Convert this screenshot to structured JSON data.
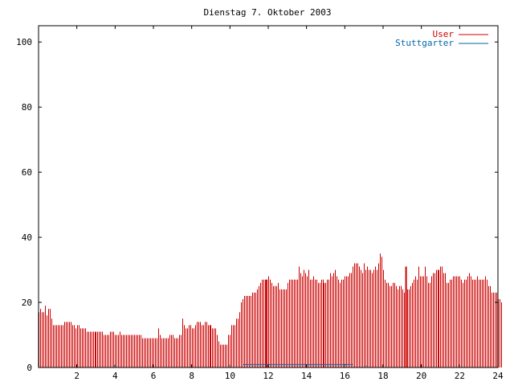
{
  "chart_data": {
    "type": "bar",
    "title": "Dienstag 7. Oktober 2003",
    "xlabel": "",
    "ylabel": "",
    "xlim": [
      0,
      24
    ],
    "ylim": [
      0,
      105
    ],
    "xticks": [
      "2",
      "4",
      "6",
      "8",
      "10",
      "12",
      "14",
      "16",
      "18",
      "20",
      "22",
      "24"
    ],
    "yticks": [
      "0",
      "20",
      "40",
      "60",
      "80",
      "100"
    ],
    "grid": false,
    "legend_position": "top-right",
    "series": [
      {
        "name": "User",
        "color": "#cc0000",
        "x_start": 0,
        "x_step": 0.08333,
        "values": [
          17,
          18,
          17,
          17,
          19,
          16,
          18,
          18,
          15,
          13,
          13,
          13,
          13,
          13,
          13,
          13,
          14,
          14,
          14,
          14,
          14,
          13,
          13,
          12,
          13,
          13,
          12,
          12,
          12,
          12,
          11,
          11,
          11,
          11,
          11,
          11,
          11,
          11,
          11,
          11,
          11,
          10,
          10,
          10,
          10,
          11,
          11,
          11,
          10,
          10,
          10,
          11,
          10,
          10,
          10,
          10,
          10,
          10,
          10,
          10,
          10,
          10,
          10,
          10,
          10,
          9,
          9,
          9,
          9,
          9,
          9,
          9,
          9,
          9,
          9,
          12,
          10,
          9,
          9,
          9,
          9,
          9,
          10,
          10,
          10,
          9,
          9,
          9,
          10,
          10,
          15,
          13,
          12,
          12,
          13,
          13,
          12,
          12,
          13,
          14,
          14,
          14,
          13,
          13,
          14,
          14,
          13,
          13,
          13,
          12,
          12,
          12,
          10,
          8,
          7,
          7,
          7,
          7,
          7,
          10,
          10,
          13,
          13,
          13,
          15,
          15,
          17,
          20,
          21,
          22,
          22,
          22,
          22,
          22,
          23,
          23,
          23,
          24,
          25,
          26,
          27,
          27,
          27,
          27,
          28,
          27,
          26,
          25,
          25,
          25,
          26,
          24,
          24,
          24,
          24,
          24,
          26,
          27,
          27,
          27,
          27,
          27,
          27,
          31,
          29,
          28,
          30,
          29,
          28,
          30,
          27,
          27,
          28,
          27,
          27,
          26,
          26,
          27,
          27,
          26,
          26,
          27,
          27,
          29,
          28,
          29,
          30,
          28,
          27,
          26,
          27,
          27,
          28,
          28,
          28,
          29,
          29,
          31,
          32,
          32,
          32,
          31,
          30,
          29,
          32,
          30,
          31,
          30,
          30,
          29,
          30,
          31,
          30,
          32,
          35,
          34,
          30,
          27,
          26,
          26,
          25,
          25,
          26,
          26,
          25,
          24,
          25,
          25,
          24,
          23,
          23,
          24,
          24,
          25,
          26,
          27,
          28,
          27,
          31,
          28,
          28,
          28,
          31,
          28,
          26,
          26,
          28,
          29,
          29,
          30,
          30,
          30,
          31,
          31,
          29,
          29,
          26,
          26,
          27,
          27,
          28,
          28,
          28,
          28,
          28,
          27,
          26,
          27,
          27,
          28,
          29,
          28,
          27,
          27,
          27,
          28,
          27,
          27,
          27,
          27,
          28,
          27,
          25,
          25,
          23,
          23,
          23,
          23,
          21,
          21,
          20
        ],
        "spikes": [
          {
            "x": 11.92,
            "value": 27
          },
          {
            "x": 19.2,
            "value": 31
          }
        ]
      },
      {
        "name": "Stuttgarter",
        "color": "#0066aa",
        "segments": [
          {
            "x_start": 10.7,
            "x_end": 16.4,
            "value": 0.9
          }
        ],
        "points": [
          {
            "x": 3.98,
            "value": 0.5
          },
          {
            "x": 17.1,
            "value": 0.5
          }
        ]
      }
    ]
  }
}
